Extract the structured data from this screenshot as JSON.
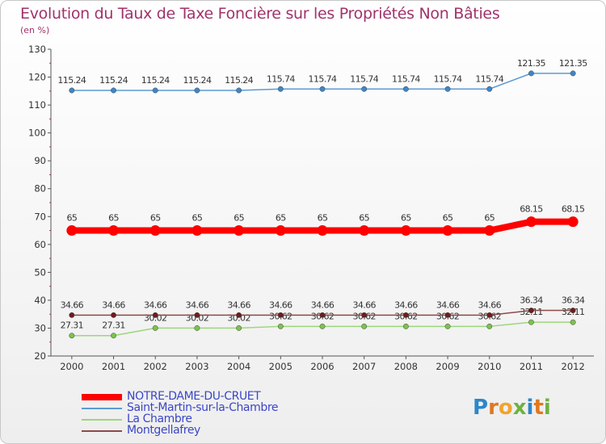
{
  "title": "Evolution du Taux de Taxe Foncière sur les Propriétés Non Bâties",
  "unit_label": "(en %)",
  "logo": {
    "letters": [
      "P",
      "r",
      "o",
      "x",
      "i",
      "t",
      "i"
    ],
    "colors": [
      "#2e86c9",
      "#e0781f",
      "#f0a42e",
      "#6db33f",
      "#2e86c9",
      "#e0781f",
      "#6db33f"
    ]
  },
  "chart_data": {
    "type": "line",
    "title": "Evolution du Taux de Taxe Foncière sur les Propriétés Non Bâties",
    "ylabel": "(en %)",
    "xlabel": "",
    "ylim": [
      20,
      130
    ],
    "yticks": [
      20,
      30,
      40,
      50,
      60,
      70,
      80,
      90,
      100,
      110,
      120,
      130
    ],
    "categories": [
      "2000",
      "2001",
      "2002",
      "2003",
      "2004",
      "2005",
      "2006",
      "2007",
      "2008",
      "2009",
      "2010",
      "2011",
      "2012"
    ],
    "series": [
      {
        "name": "Saint-Martin-sur-la-Chambre",
        "color": "#5b9bd5",
        "marker": "#3f86c6",
        "width": 1.5,
        "values": [
          115.24,
          115.24,
          115.24,
          115.24,
          115.24,
          115.74,
          115.74,
          115.74,
          115.74,
          115.74,
          115.74,
          121.35,
          121.35
        ],
        "labels": [
          "115.24",
          "115.24",
          "115.24",
          "115.24",
          "115.24",
          "115.74",
          "115.74",
          "115.74",
          "115.74",
          "115.74",
          "115.74",
          "121.35",
          "121.35"
        ]
      },
      {
        "name": "La Chambre",
        "color": "#9cd67a",
        "marker": "#7cc24e",
        "width": 1.5,
        "values": [
          27.31,
          27.31,
          30.02,
          30.02,
          30.02,
          30.62,
          30.62,
          30.62,
          30.62,
          30.62,
          30.62,
          32.11,
          32.11
        ],
        "labels": [
          "27.31",
          "27.31",
          "30.02",
          "30.02",
          "30.02",
          "30.62",
          "30.62",
          "30.62",
          "30.62",
          "30.62",
          "30.62",
          "32.11",
          "32.11"
        ]
      },
      {
        "name": "Montgellafrey",
        "color": "#8b4a4a",
        "marker": "#6e1c1c",
        "width": 1.5,
        "values": [
          34.66,
          34.66,
          34.66,
          34.66,
          34.66,
          34.66,
          34.66,
          34.66,
          34.66,
          34.66,
          34.66,
          36.34,
          36.34
        ],
        "labels": [
          "34.66",
          "34.66",
          "34.66",
          "34.66",
          "34.66",
          "34.66",
          "34.66",
          "34.66",
          "34.66",
          "34.66",
          "34.66",
          "36.34",
          "36.34"
        ]
      },
      {
        "name": "NOTRE-DAME-DU-CRUET",
        "color": "#ff0000",
        "marker": "#ff0000",
        "width": 8,
        "values": [
          65,
          65,
          65,
          65,
          65,
          65,
          65,
          65,
          65,
          65,
          65,
          68.15,
          68.15
        ],
        "labels": [
          "65",
          "65",
          "65",
          "65",
          "65",
          "65",
          "65",
          "65",
          "65",
          "65",
          "65",
          "68.15",
          "68.15"
        ]
      }
    ],
    "legend": [
      {
        "name": "NOTRE-DAME-DU-CRUET",
        "color": "#ff0000",
        "width": 8
      },
      {
        "name": "Saint-Martin-sur-la-Chambre",
        "color": "#5b9bd5",
        "width": 2
      },
      {
        "name": "La Chambre",
        "color": "#9cd67a",
        "width": 2
      },
      {
        "name": "Montgellafrey",
        "color": "#8b4a4a",
        "width": 2
      }
    ],
    "legend_position": "bottom-left",
    "grid": false
  }
}
